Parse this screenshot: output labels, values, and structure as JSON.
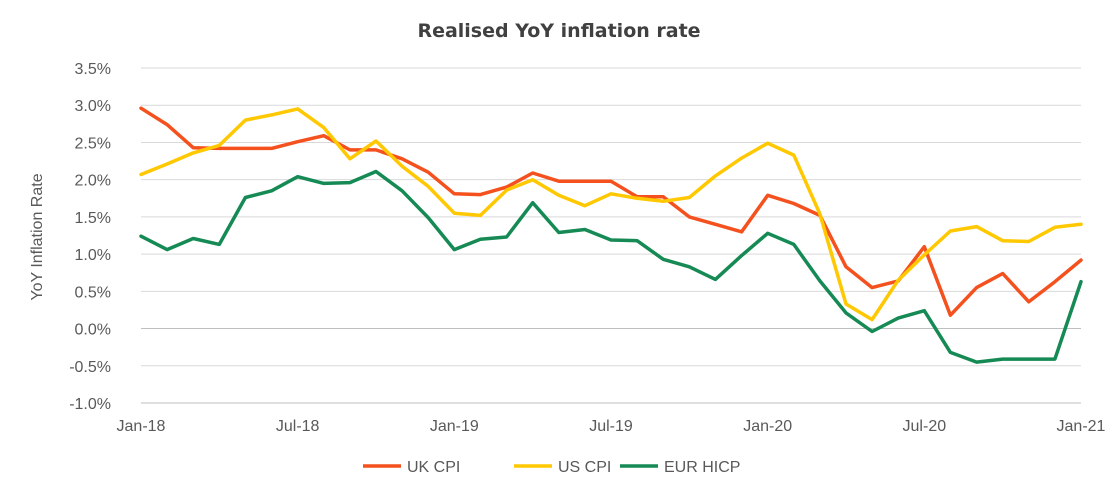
{
  "chart_data": {
    "type": "line",
    "title": "Realised YoY inflation rate",
    "ylabel": "YoY Inflation Rate",
    "xlabel": "",
    "ylim": [
      -1.0,
      3.5
    ],
    "y_ticks": [
      "-1.0%",
      "-0.5%",
      "0.0%",
      "0.5%",
      "1.0%",
      "1.5%",
      "2.0%",
      "2.5%",
      "3.0%",
      "3.5%"
    ],
    "y_tick_values": [
      -1.0,
      -0.5,
      0.0,
      0.5,
      1.0,
      1.5,
      2.0,
      2.5,
      3.0,
      3.5
    ],
    "x_ticks": [
      "Jan-18",
      "Jul-18",
      "Jan-19",
      "Jul-19",
      "Jan-20",
      "Jul-20",
      "Jan-21"
    ],
    "x_tick_months": [
      "2018-01",
      "2018-07",
      "2019-01",
      "2019-07",
      "2020-01",
      "2020-07",
      "2021-01"
    ],
    "grid": true,
    "legend_position": "bottom",
    "x": [
      "2018-01",
      "2018-02",
      "2018-03",
      "2018-04",
      "2018-05",
      "2018-06",
      "2018-07",
      "2018-08",
      "2018-09",
      "2018-10",
      "2018-11",
      "2018-12",
      "2019-01",
      "2019-02",
      "2019-03",
      "2019-04",
      "2019-05",
      "2019-06",
      "2019-07",
      "2019-08",
      "2019-09",
      "2019-10",
      "2019-11",
      "2019-12",
      "2020-01",
      "2020-02",
      "2020-03",
      "2020-04",
      "2020-05",
      "2020-06",
      "2020-07",
      "2020-08",
      "2020-09",
      "2020-10",
      "2020-11",
      "2020-12",
      "2021-01"
    ],
    "series": [
      {
        "name": "UK CPI",
        "color": "#f4511e",
        "values": [
          2.96,
          2.74,
          2.43,
          2.42,
          2.42,
          2.42,
          2.51,
          2.59,
          2.4,
          2.4,
          2.28,
          2.1,
          1.81,
          1.8,
          1.9,
          2.09,
          1.98,
          1.98,
          1.98,
          1.77,
          1.77,
          1.5,
          1.4,
          1.3,
          1.79,
          1.68,
          1.52,
          0.83,
          0.55,
          0.64,
          1.1,
          0.18,
          0.55,
          0.74,
          0.36,
          0.63,
          0.92
        ]
      },
      {
        "name": "US CPI",
        "color": "#ffc800",
        "values": [
          2.07,
          2.21,
          2.36,
          2.46,
          2.8,
          2.87,
          2.95,
          2.7,
          2.28,
          2.52,
          2.18,
          1.91,
          1.55,
          1.52,
          1.86,
          2.0,
          1.79,
          1.65,
          1.81,
          1.75,
          1.71,
          1.76,
          2.05,
          2.29,
          2.49,
          2.33,
          1.54,
          0.33,
          0.12,
          0.65,
          0.99,
          1.31,
          1.37,
          1.18,
          1.17,
          1.36,
          1.4
        ]
      },
      {
        "name": "EUR HICP",
        "color": "#168a55",
        "values": [
          1.24,
          1.06,
          1.21,
          1.13,
          1.76,
          1.85,
          2.04,
          1.95,
          1.96,
          2.11,
          1.85,
          1.49,
          1.06,
          1.2,
          1.23,
          1.69,
          1.29,
          1.33,
          1.19,
          1.18,
          0.93,
          0.83,
          0.66,
          0.98,
          1.28,
          1.13,
          0.64,
          0.21,
          -0.04,
          0.14,
          0.24,
          -0.32,
          -0.45,
          -0.41,
          -0.41,
          -0.41,
          0.63
        ]
      }
    ]
  }
}
